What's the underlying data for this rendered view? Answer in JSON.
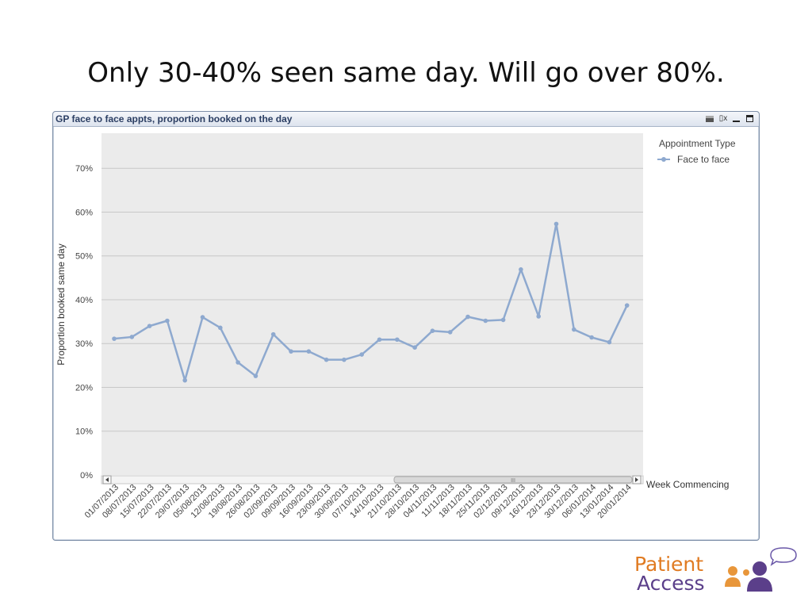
{
  "slide": {
    "title": "Only 30-40% seen same day.  Will go over 80%."
  },
  "window": {
    "caption": "GP face to face appts, proportion booked on the day",
    "icons": [
      "print-icon",
      "xl-export-icon",
      "minimize-icon",
      "maximize-icon"
    ],
    "xl_glyph": "▯x"
  },
  "scrollbar": {
    "grip": "III"
  },
  "chart_data": {
    "type": "line",
    "title": "",
    "ylabel": "Proportion booked same day",
    "xlabel": "Week Commencing",
    "ylim": [
      0,
      0.78
    ],
    "yticks": [
      0,
      0.1,
      0.2,
      0.3,
      0.4,
      0.5,
      0.6,
      0.7
    ],
    "ytick_labels": [
      "0%",
      "10%",
      "20%",
      "30%",
      "40%",
      "50%",
      "60%",
      "70%"
    ],
    "grid": true,
    "legend_title": "Appointment Type",
    "legend_position": "top-right",
    "categories": [
      "01/07/2013",
      "08/07/2013",
      "15/07/2013",
      "22/07/2013",
      "29/07/2013",
      "05/08/2013",
      "12/08/2013",
      "19/08/2013",
      "26/08/2013",
      "02/09/2013",
      "09/09/2013",
      "16/09/2013",
      "23/09/2013",
      "30/09/2013",
      "07/10/2013",
      "14/10/2013",
      "21/10/2013",
      "28/10/2013",
      "04/11/2013",
      "11/11/2013",
      "18/11/2013",
      "25/11/2013",
      "02/12/2013",
      "09/12/2013",
      "16/12/2013",
      "23/12/2013",
      "30/12/2013",
      "06/01/2014",
      "13/01/2014",
      "20/01/2014"
    ],
    "series": [
      {
        "name": "Face to face",
        "color": "#8ea9cf",
        "values": [
          0.311,
          0.315,
          0.34,
          0.352,
          0.216,
          0.36,
          0.336,
          0.257,
          0.226,
          0.321,
          0.282,
          0.282,
          0.263,
          0.263,
          0.275,
          0.309,
          0.309,
          0.291,
          0.329,
          0.326,
          0.361,
          0.352,
          0.354,
          0.469,
          0.362,
          0.573,
          0.332,
          0.314,
          0.303,
          0.387
        ]
      }
    ],
    "colors": {
      "plot_bg": "#ebebeb",
      "grid": "#c8c8c8",
      "axis_text": "#444444"
    }
  },
  "logo": {
    "line1": "Patient",
    "line2": "Access",
    "orange": "#e07b22",
    "purple": "#5b3f8a"
  }
}
